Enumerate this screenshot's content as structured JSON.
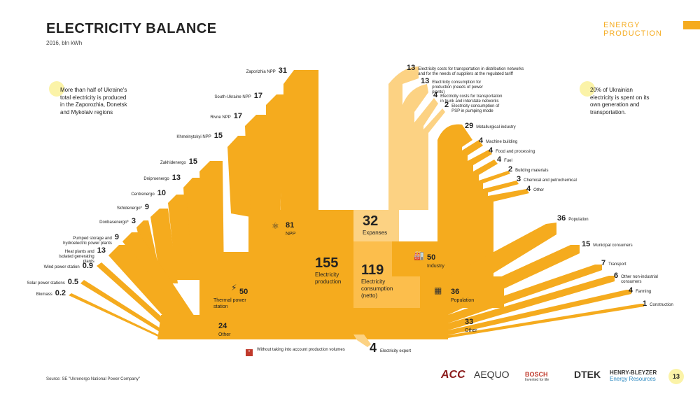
{
  "header": {
    "title": "ELECTRICITY BALANCE",
    "subtitle": "2016, bln kWh",
    "section": "ENERGY PRODUCTION"
  },
  "notes": {
    "left": "More than half of Ukraine's total electricity is produced in the Zaporozhia, Donetsk and Mykolaiv regions",
    "right": "20% of Ukrainian electricity is spent on its own generation and transportation."
  },
  "sources": [
    {
      "value": "31",
      "label": "Zaporizhia NPP"
    },
    {
      "value": "17",
      "label": "South-Ukraine NPP"
    },
    {
      "value": "17",
      "label": "Rivne NPP"
    },
    {
      "value": "15",
      "label": "Khmelnytskyi NPP"
    },
    {
      "value": "15",
      "label": "Zakhidenergo"
    },
    {
      "value": "13",
      "label": "Dniproenergo"
    },
    {
      "value": "10",
      "label": "Centrenergo"
    },
    {
      "value": "9",
      "label": "Skhidenergo*"
    },
    {
      "value": "3",
      "label": "Donbasenergo*"
    },
    {
      "value": "9",
      "label": "Pumped storage and hydroelectric power plants"
    },
    {
      "value": "13",
      "label": "Heat plants and isolated generating plants"
    },
    {
      "value": "0.9",
      "label": "Wind power station"
    },
    {
      "value": "0.5",
      "label": "Solar power stations"
    },
    {
      "value": "0.2",
      "label": "Biomass"
    }
  ],
  "hubs": {
    "npp": {
      "value": "81",
      "label": "NPP"
    },
    "thermal": {
      "value": "50",
      "label": "Thermal power station"
    },
    "other_left": {
      "value": "24",
      "label": "Other"
    },
    "production": {
      "value": "155",
      "label": "Electricity production"
    },
    "expanses": {
      "value": "32",
      "label": "Expanses"
    },
    "consumption": {
      "value": "119",
      "label": "Electricity consumption (netto)"
    },
    "industry": {
      "value": "50",
      "label": "Industry"
    },
    "population": {
      "value": "36",
      "label": "Population"
    },
    "other_right": {
      "value": "33",
      "label": "Other"
    }
  },
  "expenses": [
    {
      "value": "13",
      "label": "Electricity costs for transportation in distribution networks and for the needs of suppliers at the regulated tariff"
    },
    {
      "value": "13",
      "label": "Electricity consumption for production (needs of power plants)"
    },
    {
      "value": "4",
      "label": "Electricity costs for transportation in trunk and interstate networks"
    },
    {
      "value": "2",
      "label": "Electricity consumption of PSP in pumping mode"
    }
  ],
  "industry_items": [
    {
      "value": "29",
      "label": "Metallurgical industry"
    },
    {
      "value": "4",
      "label": "Machine building"
    },
    {
      "value": "4",
      "label": "Food and processing"
    },
    {
      "value": "4",
      "label": "Fuel"
    },
    {
      "value": "2",
      "label": "Building materials"
    },
    {
      "value": "3",
      "label": "Chemical and petrochemical"
    },
    {
      "value": "4",
      "label": "Other"
    }
  ],
  "consumers": [
    {
      "value": "36",
      "label": "Population"
    },
    {
      "value": "15",
      "label": "Municipal consumers"
    },
    {
      "value": "7",
      "label": "Transport"
    },
    {
      "value": "6",
      "label": "Other non-industrial consumers"
    },
    {
      "value": "4",
      "label": "Farming"
    },
    {
      "value": "1",
      "label": "Construction"
    }
  ],
  "export": {
    "value": "4",
    "label": "Electricity export"
  },
  "footnote": {
    "mark": "*",
    "text": "Without taking into account production volumes"
  },
  "source": "Source: SE \"Ukrenergo National Power Company\"",
  "logos": [
    "ACC",
    "AEQUO",
    "BOSCH",
    "DTEK",
    "HENRY-BLEYZER"
  ],
  "logo_sub": {
    "bosch": "Invented for life",
    "hb": "Energy Resources"
  },
  "page_number": "13",
  "colors": {
    "main": "#f5ab1e",
    "light": "#fcd283",
    "accent": "#f5ab1e"
  }
}
